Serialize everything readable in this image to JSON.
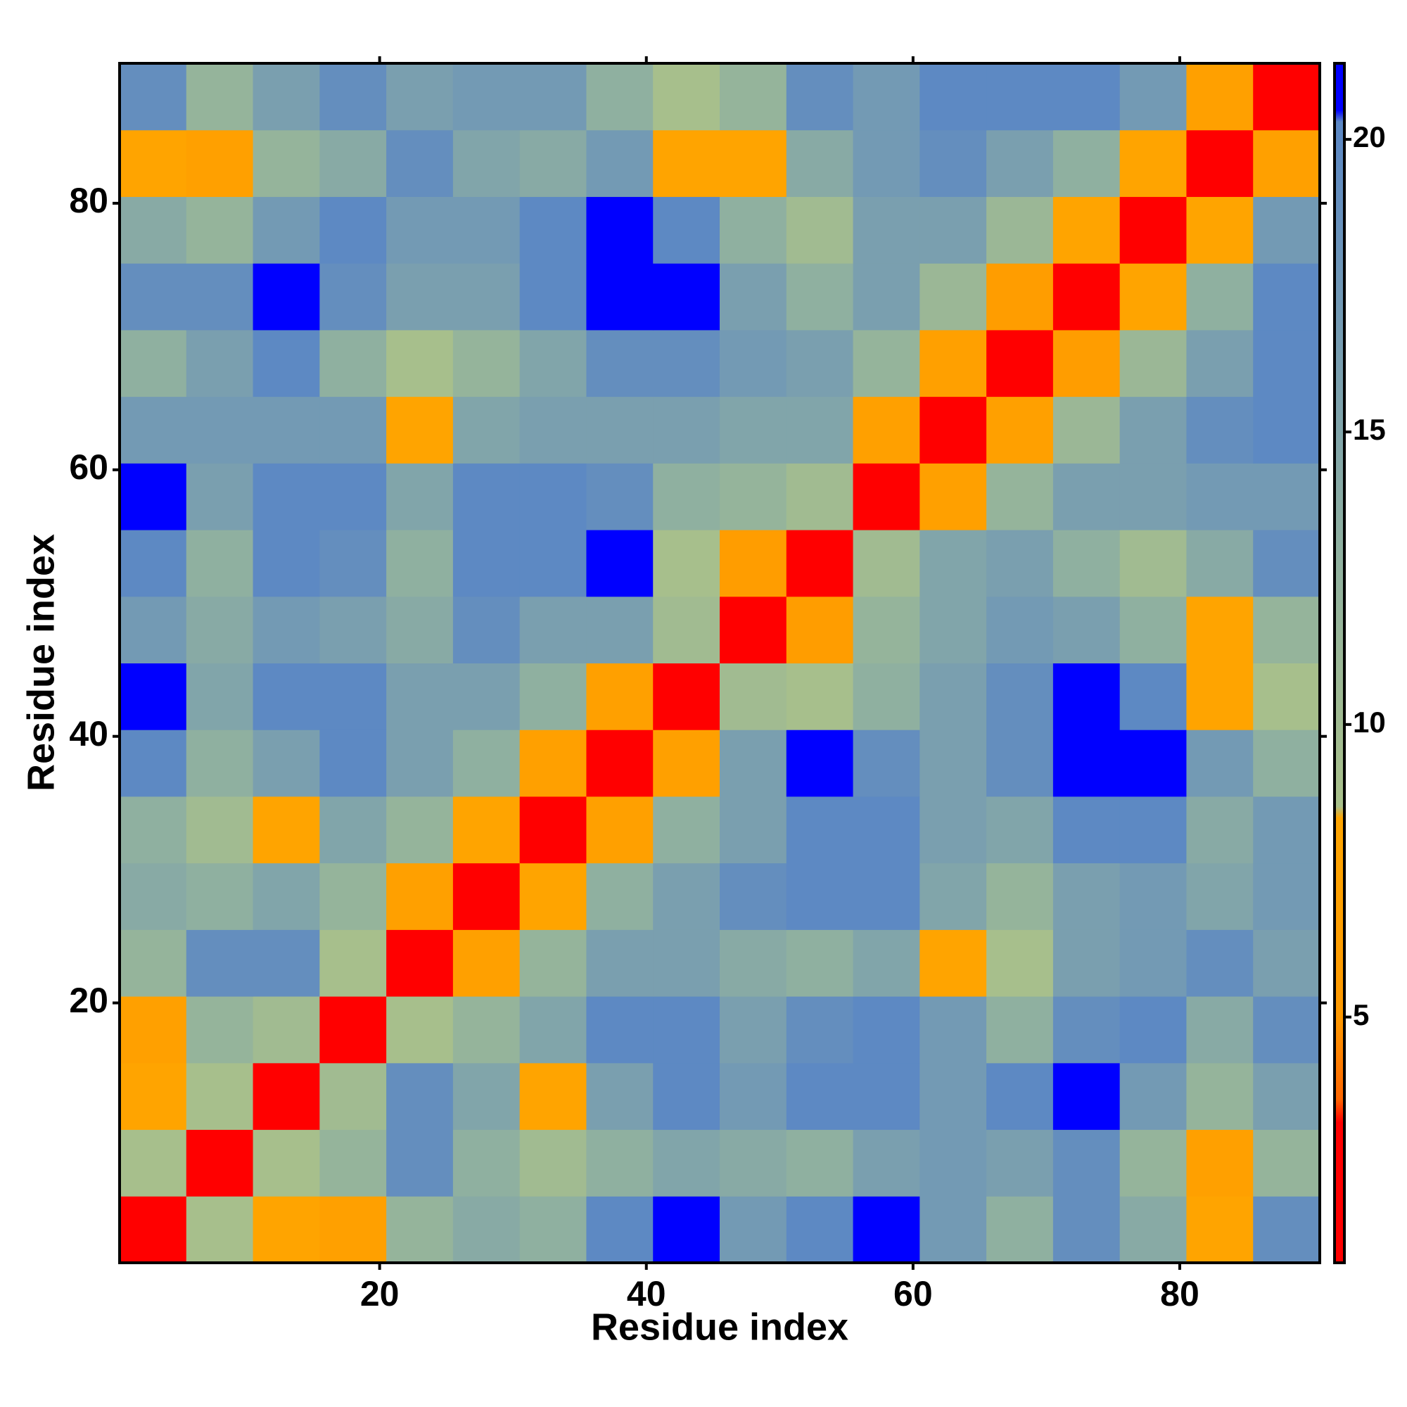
{
  "chart_data": {
    "type": "heatmap",
    "xlabel": "Residue index",
    "ylabel": "Residue index",
    "bins": [
      0.5,
      5.5,
      10.5,
      15.5,
      20.5,
      25.5,
      30.5,
      35.5,
      40.5,
      45.5,
      50.5,
      55.5,
      60.5,
      65.5,
      70.5,
      75.5,
      80.5,
      85.5,
      90.5
    ],
    "xlim": [
      0.5,
      90.5
    ],
    "ylim": [
      0.5,
      90.5
    ],
    "xticks": [
      20,
      40,
      60,
      80
    ],
    "yticks": [
      20,
      40,
      60,
      80
    ],
    "zlim": [
      0.8,
      21.3
    ],
    "zticks": [
      5,
      10,
      15,
      20
    ],
    "colorscale": [
      [
        0.8,
        "#ff0000"
      ],
      [
        3.2,
        "#ff0000"
      ],
      [
        3.6,
        "#ff6600"
      ],
      [
        5,
        "#ff9900"
      ],
      [
        8.4,
        "#ffa500"
      ],
      [
        8.6,
        "#a9c08a"
      ],
      [
        13,
        "#8fb0a0"
      ],
      [
        20.3,
        "#5b87c4"
      ],
      [
        20.5,
        "#0000ff"
      ],
      [
        21.3,
        "#0000ff"
      ]
    ],
    "z": [
      [
        2,
        9,
        8,
        7,
        12,
        14,
        13,
        20,
        21,
        17,
        20,
        21,
        17,
        13,
        19,
        14,
        8,
        19
      ],
      [
        9,
        2,
        9,
        12,
        19,
        13,
        10,
        13,
        15,
        14,
        13,
        16,
        17,
        16,
        19,
        12,
        7,
        12
      ],
      [
        8,
        9,
        2,
        10,
        19,
        15,
        8,
        16,
        20,
        17,
        20,
        20,
        17,
        20,
        21,
        17,
        12,
        16
      ],
      [
        7,
        12,
        10,
        2,
        9,
        12,
        15,
        20,
        20,
        16,
        19,
        20,
        17,
        13,
        19,
        20,
        14,
        19
      ],
      [
        12,
        19,
        19,
        9,
        2,
        7,
        12,
        16,
        16,
        14,
        13,
        15,
        8,
        9,
        16,
        17,
        19,
        16
      ],
      [
        14,
        13,
        15,
        12,
        7,
        2,
        8,
        13,
        16,
        19,
        20,
        20,
        15,
        12,
        16,
        17,
        15,
        17
      ],
      [
        13,
        10,
        8,
        15,
        12,
        8,
        2,
        7,
        13,
        16,
        20,
        20,
        16,
        15,
        20,
        20,
        14,
        17
      ],
      [
        20,
        13,
        16,
        20,
        16,
        13,
        7,
        2,
        7,
        16,
        21,
        19,
        16,
        19,
        21,
        21,
        17,
        13
      ],
      [
        21,
        15,
        20,
        20,
        16,
        16,
        13,
        7,
        2,
        10,
        9,
        13,
        16,
        19,
        21,
        20,
        8,
        9
      ],
      [
        17,
        14,
        17,
        16,
        14,
        19,
        16,
        16,
        10,
        2,
        6,
        12,
        15,
        17,
        16,
        13,
        8,
        12
      ],
      [
        20,
        13,
        20,
        19,
        13,
        20,
        20,
        21,
        9,
        6,
        2,
        10,
        15,
        16,
        13,
        10,
        14,
        19
      ],
      [
        21,
        16,
        20,
        20,
        15,
        20,
        20,
        19,
        13,
        12,
        10,
        2,
        7,
        12,
        16,
        16,
        17,
        17
      ],
      [
        17,
        17,
        17,
        17,
        8,
        15,
        16,
        16,
        16,
        15,
        15,
        7,
        2,
        7,
        11,
        16,
        19,
        20
      ],
      [
        13,
        16,
        20,
        13,
        9,
        12,
        15,
        19,
        19,
        17,
        16,
        12,
        7,
        2,
        6,
        11,
        16,
        20
      ],
      [
        19,
        19,
        21,
        19,
        16,
        16,
        20,
        21,
        21,
        16,
        13,
        16,
        11,
        6,
        2,
        8,
        13,
        20
      ],
      [
        14,
        12,
        17,
        20,
        17,
        17,
        20,
        21,
        20,
        13,
        10,
        16,
        16,
        11,
        8,
        2,
        8,
        17
      ],
      [
        8,
        7,
        12,
        14,
        19,
        15,
        14,
        17,
        8,
        8,
        14,
        17,
        19,
        16,
        13,
        8,
        2,
        7
      ],
      [
        19,
        12,
        16,
        19,
        16,
        17,
        17,
        13,
        9,
        12,
        19,
        17,
        20,
        20,
        20,
        17,
        7,
        2
      ]
    ]
  }
}
